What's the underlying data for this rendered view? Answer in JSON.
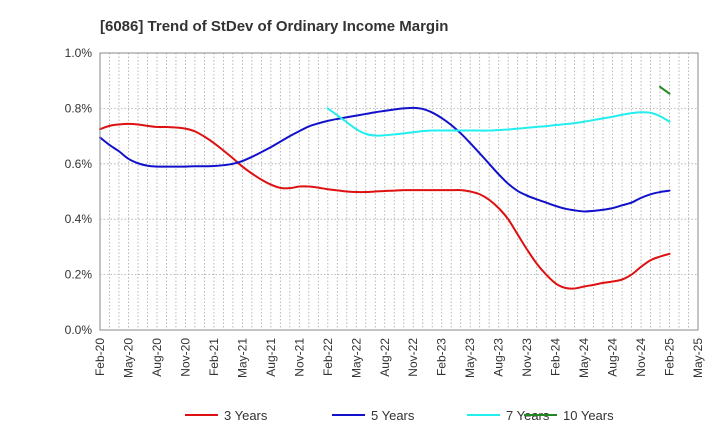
{
  "chart_data": {
    "type": "line",
    "title": "[6086]  Trend of StDev of Ordinary Income Margin",
    "xlabel": "",
    "ylabel": "",
    "x_ticks": [
      "Feb-20",
      "May-20",
      "Aug-20",
      "Nov-20",
      "Feb-21",
      "May-21",
      "Aug-21",
      "Nov-21",
      "Feb-22",
      "May-22",
      "Aug-22",
      "Nov-22",
      "Feb-23",
      "May-23",
      "Aug-23",
      "Nov-23",
      "Feb-24",
      "May-24",
      "Aug-24",
      "Nov-24",
      "Feb-25",
      "May-25"
    ],
    "y_ticks": [
      "0.0%",
      "0.2%",
      "0.4%",
      "0.6%",
      "0.8%",
      "1.0%"
    ],
    "ylim": [
      0,
      1.0
    ],
    "y_unit": "%",
    "grid": true,
    "legend_position": "bottom",
    "series": [
      {
        "name": "3 Years",
        "color": "#dd1111",
        "x": [
          "Feb-20",
          "Mar-20",
          "Apr-20",
          "May-20",
          "Jun-20",
          "Jul-20",
          "Aug-20",
          "Sep-20",
          "Oct-20",
          "Nov-20",
          "Dec-20",
          "Jan-21",
          "Feb-21",
          "Mar-21",
          "Apr-21",
          "May-21",
          "Jun-21",
          "Jul-21",
          "Aug-21",
          "Sep-21",
          "Oct-21",
          "Nov-21",
          "Dec-21",
          "Jan-22",
          "Feb-22",
          "Mar-22",
          "Apr-22",
          "May-22",
          "Jun-22",
          "Jul-22",
          "Aug-22",
          "Sep-22",
          "Oct-22",
          "Nov-22",
          "Dec-22",
          "Jan-23",
          "Feb-23",
          "Mar-23",
          "Apr-23",
          "May-23",
          "Jun-23",
          "Jul-23",
          "Aug-23",
          "Sep-23",
          "Oct-23",
          "Nov-23",
          "Dec-23",
          "Jan-24",
          "Feb-24",
          "Mar-24",
          "Apr-24",
          "May-24",
          "Jun-24",
          "Jul-24",
          "Aug-24",
          "Sep-24",
          "Oct-24",
          "Nov-24",
          "Dec-24",
          "Jan-25",
          "Feb-25"
        ],
        "values": [
          0.725,
          0.737,
          0.742,
          0.744,
          0.742,
          0.737,
          0.733,
          0.733,
          0.731,
          0.727,
          0.717,
          0.698,
          0.675,
          0.648,
          0.62,
          0.59,
          0.565,
          0.543,
          0.525,
          0.513,
          0.512,
          0.518,
          0.518,
          0.514,
          0.508,
          0.504,
          0.5,
          0.498,
          0.498,
          0.5,
          0.502,
          0.503,
          0.505,
          0.505,
          0.505,
          0.505,
          0.505,
          0.505,
          0.505,
          0.5,
          0.49,
          0.47,
          0.44,
          0.4,
          0.345,
          0.29,
          0.24,
          0.2,
          0.168,
          0.152,
          0.15,
          0.157,
          0.163,
          0.17,
          0.175,
          0.182,
          0.2,
          0.228,
          0.252,
          0.265,
          0.275
        ]
      },
      {
        "name": "5 Years",
        "color": "#1111cc",
        "x": [
          "Feb-20",
          "Mar-20",
          "Apr-20",
          "May-20",
          "Jun-20",
          "Jul-20",
          "Aug-20",
          "Sep-20",
          "Oct-20",
          "Nov-20",
          "Dec-20",
          "Jan-21",
          "Feb-21",
          "Mar-21",
          "Apr-21",
          "May-21",
          "Jun-21",
          "Jul-21",
          "Aug-21",
          "Sep-21",
          "Oct-21",
          "Nov-21",
          "Dec-21",
          "Jan-22",
          "Feb-22",
          "Mar-22",
          "Apr-22",
          "May-22",
          "Jun-22",
          "Jul-22",
          "Aug-22",
          "Sep-22",
          "Oct-22",
          "Nov-22",
          "Dec-22",
          "Jan-23",
          "Feb-23",
          "Mar-23",
          "Apr-23",
          "May-23",
          "Jun-23",
          "Jul-23",
          "Aug-23",
          "Sep-23",
          "Oct-23",
          "Nov-23",
          "Dec-23",
          "Jan-24",
          "Feb-24",
          "Mar-24",
          "Apr-24",
          "May-24",
          "Jun-24",
          "Jul-24",
          "Aug-24",
          "Sep-24",
          "Oct-24",
          "Nov-24",
          "Dec-24",
          "Jan-25",
          "Feb-25"
        ],
        "values": [
          0.695,
          0.668,
          0.645,
          0.618,
          0.602,
          0.593,
          0.59,
          0.59,
          0.59,
          0.59,
          0.591,
          0.591,
          0.592,
          0.595,
          0.6,
          0.61,
          0.625,
          0.642,
          0.66,
          0.68,
          0.7,
          0.718,
          0.735,
          0.746,
          0.755,
          0.762,
          0.768,
          0.774,
          0.78,
          0.786,
          0.791,
          0.796,
          0.8,
          0.802,
          0.798,
          0.785,
          0.765,
          0.74,
          0.71,
          0.675,
          0.638,
          0.6,
          0.562,
          0.528,
          0.502,
          0.485,
          0.472,
          0.46,
          0.448,
          0.438,
          0.432,
          0.428,
          0.43,
          0.434,
          0.44,
          0.45,
          0.46,
          0.477,
          0.49,
          0.498,
          0.503
        ]
      },
      {
        "name": "7 Years",
        "color": "#22eeee",
        "x": [
          "Feb-22",
          "Mar-22",
          "Apr-22",
          "May-22",
          "Jun-22",
          "Jul-22",
          "Aug-22",
          "Sep-22",
          "Oct-22",
          "Nov-22",
          "Dec-22",
          "Jan-23",
          "Feb-23",
          "Mar-23",
          "Apr-23",
          "May-23",
          "Jun-23",
          "Jul-23",
          "Aug-23",
          "Sep-23",
          "Oct-23",
          "Nov-23",
          "Dec-23",
          "Jan-24",
          "Feb-24",
          "Mar-24",
          "Apr-24",
          "May-24",
          "Jun-24",
          "Jul-24",
          "Aug-24",
          "Sep-24",
          "Oct-24",
          "Nov-24",
          "Dec-24",
          "Jan-25",
          "Feb-25"
        ],
        "values": [
          0.8,
          0.775,
          0.75,
          0.725,
          0.708,
          0.702,
          0.703,
          0.706,
          0.71,
          0.714,
          0.718,
          0.72,
          0.72,
          0.72,
          0.72,
          0.72,
          0.72,
          0.72,
          0.722,
          0.724,
          0.727,
          0.73,
          0.733,
          0.736,
          0.74,
          0.743,
          0.747,
          0.752,
          0.758,
          0.764,
          0.77,
          0.777,
          0.783,
          0.786,
          0.784,
          0.772,
          0.752
        ]
      },
      {
        "name": "10 Years",
        "color": "#228822",
        "x": [
          "Jan-25",
          "Feb-25"
        ],
        "values": [
          0.878,
          0.853
        ]
      }
    ]
  }
}
